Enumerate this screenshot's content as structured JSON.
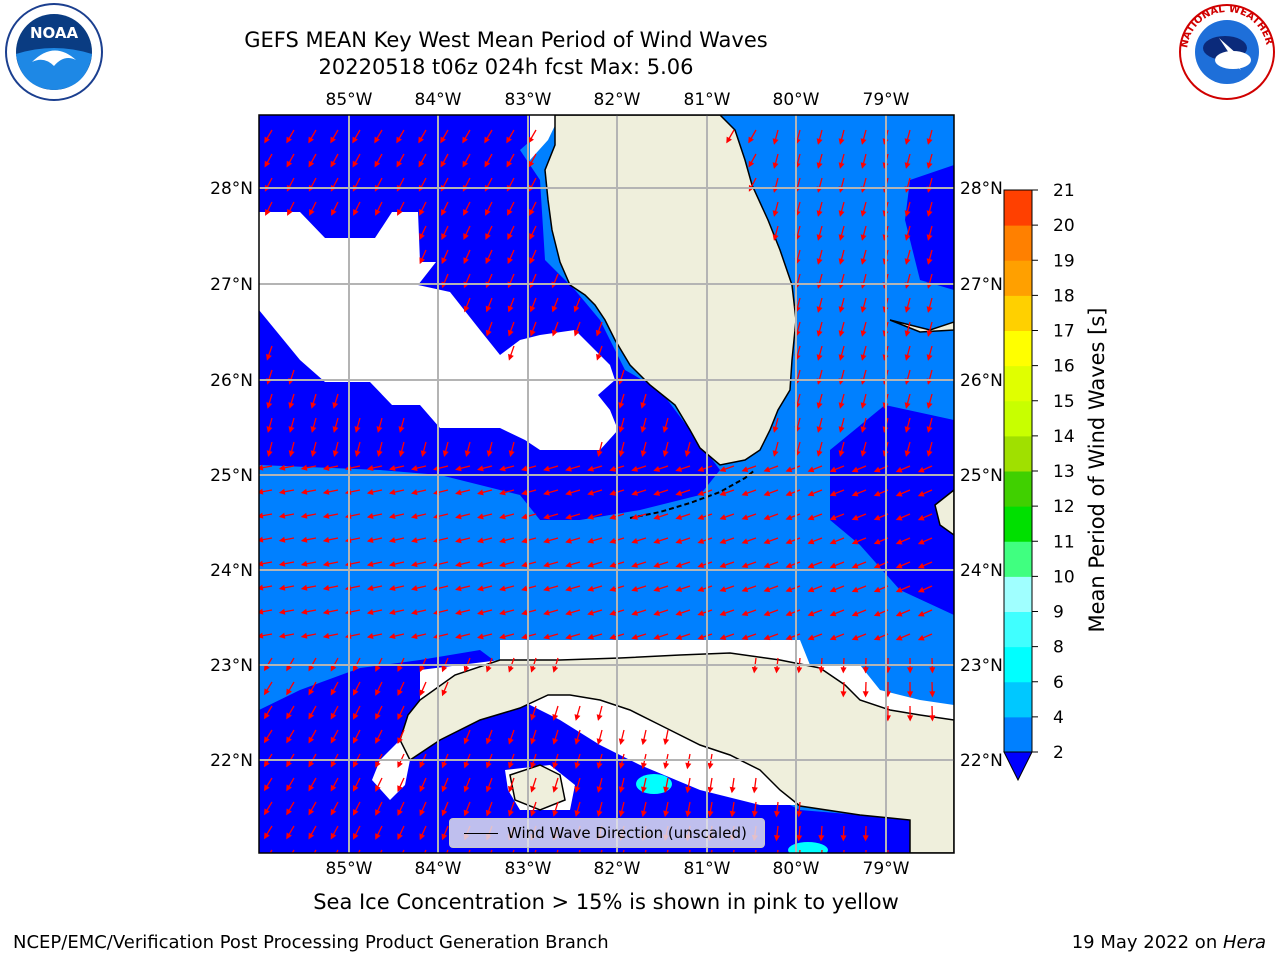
{
  "title_line1": "GEFS MEAN Key West Mean Period of Wind Waves",
  "title_line2": "20220518 t06z 024h fcst   Max: 5.06",
  "lon_labels": [
    "85°W",
    "84°W",
    "83°W",
    "82°W",
    "81°W",
    "80°W",
    "79°W"
  ],
  "lat_labels": [
    "28°N",
    "27°N",
    "26°N",
    "25°N",
    "24°N",
    "23°N",
    "22°N"
  ],
  "colorbar": {
    "label": "Mean Period of Wind Waves [s]",
    "ticks": [
      "2",
      "4",
      "6",
      "8",
      "9",
      "10",
      "11",
      "12",
      "13",
      "14",
      "15",
      "16",
      "17",
      "18",
      "19",
      "20",
      "21"
    ],
    "colors": [
      "#0080ff",
      "#00c8ff",
      "#00ffff",
      "#40ffff",
      "#a0ffff",
      "#40ff80",
      "#00e000",
      "#40d000",
      "#a0e000",
      "#c8ff00",
      "#e0ff00",
      "#ffff00",
      "#ffd000",
      "#ffa000",
      "#ff8000",
      "#ff4000",
      "#ff0000"
    ],
    "extend_color": "#0000ff"
  },
  "legend_label": "Wind Wave Direction (unscaled)",
  "caption": "Sea Ice Concentration > 15% is shown in pink to yellow",
  "footer_left": "NCEP/EMC/Verification Post Processing Product Generation Branch",
  "footer_right_date": "19 May 2022 on ",
  "footer_right_host": "Hera",
  "logos": {
    "noaa_text": "NOAA",
    "nws_text": "NATIONAL WEATHER SERVICE"
  },
  "colors": {
    "ocean_light": "#0080ff",
    "ocean_dark": "#0000ff",
    "land": "#efefdc",
    "arrow": "#ff0000",
    "grid": "#b4b4b4"
  }
}
